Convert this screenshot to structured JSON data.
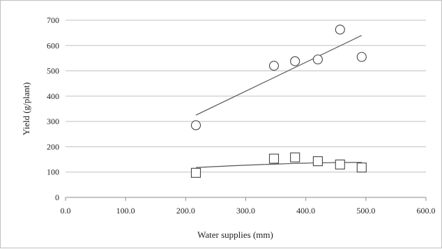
{
  "chart_data": {
    "type": "scatter",
    "title": "",
    "xlabel": "Water supplies  (mm)",
    "ylabel": "Yield (g/plant)",
    "xlim": [
      0,
      600
    ],
    "ylim": [
      0,
      700
    ],
    "x_ticks": [
      "0.0",
      "100.0",
      "200.0",
      "300.0",
      "400.0",
      "500.0",
      "600.0"
    ],
    "y_ticks": [
      "0",
      "100",
      "200",
      "300",
      "400",
      "500",
      "600",
      "700"
    ],
    "grid": "horizontal",
    "legend": "none",
    "series": [
      {
        "marker": "circle",
        "x": [
          217,
          347,
          382,
          420,
          457,
          493
        ],
        "y": [
          285,
          520,
          538,
          545,
          663,
          555
        ],
        "trendline": {
          "type": "linear",
          "x_range": [
            217,
            493
          ],
          "y_range": [
            325,
            640
          ]
        }
      },
      {
        "marker": "square",
        "x": [
          217,
          347,
          382,
          420,
          457,
          493
        ],
        "y": [
          97,
          153,
          158,
          143,
          130,
          118
        ],
        "trendline": {
          "type": "curve",
          "x_range": [
            217,
            493
          ],
          "y_range": [
            118,
            138
          ]
        }
      }
    ],
    "colors": {
      "marker": "#444444",
      "trendline": "#555555",
      "grid": "#c0c0c0"
    }
  }
}
